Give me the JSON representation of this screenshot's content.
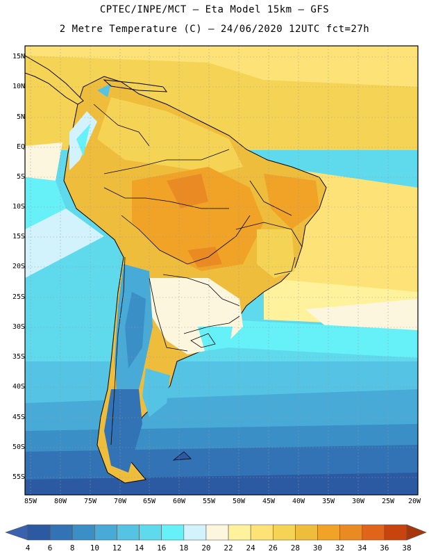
{
  "header": {
    "title_line1": "CPTEC/INPE/MCT –  Eta Model 15km – GFS",
    "title_line2": "2 Metre Temperature (C) – 24/06/2020 12UTC fct=27h"
  },
  "map": {
    "region": "South America",
    "lat_labels": [
      "15N",
      "10N",
      "5N",
      "EQ",
      "5S",
      "10S",
      "15S",
      "20S",
      "25S",
      "30S",
      "35S",
      "40S",
      "45S",
      "50S",
      "55S"
    ],
    "lon_labels": [
      "85W",
      "80W",
      "75W",
      "70W",
      "65W",
      "60W",
      "55W",
      "50W",
      "45W",
      "40W",
      "35W",
      "30W",
      "25W",
      "20W"
    ]
  },
  "colorbar": {
    "labels": [
      "4",
      "6",
      "8",
      "10",
      "12",
      "14",
      "16",
      "18",
      "20",
      "22",
      "24",
      "26",
      "28",
      "30",
      "32",
      "34",
      "36",
      "38"
    ],
    "colors": [
      "#2b5aa3",
      "#3173b5",
      "#3a8fc6",
      "#48abd7",
      "#55c3e3",
      "#5fd9ec",
      "#66f0f7",
      "#d2f3fb",
      "#fdf6df",
      "#fef39c",
      "#fde377",
      "#f5d455",
      "#efbd3c",
      "#f0a326",
      "#ea8a22",
      "#e0651a",
      "#c7440e"
    ],
    "low_color": "#3a61ad",
    "high_color": "#a8360c"
  }
}
